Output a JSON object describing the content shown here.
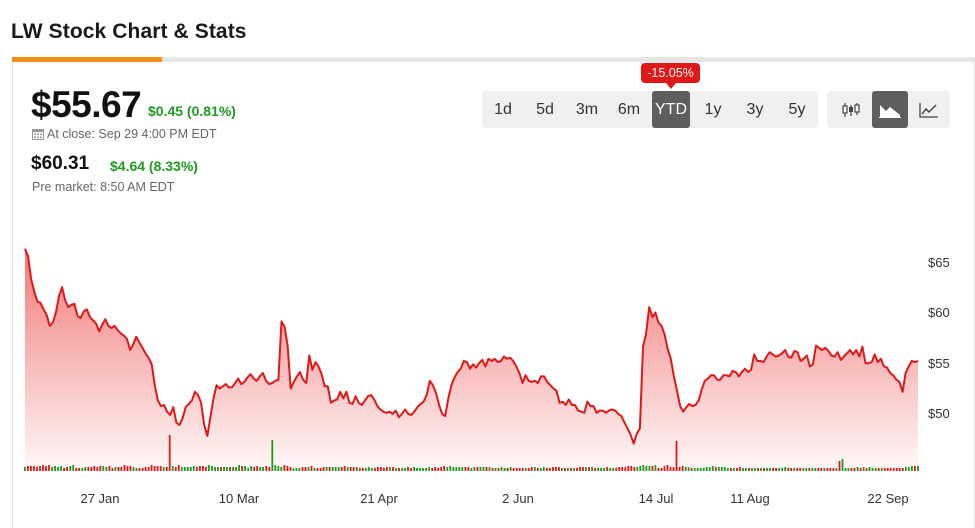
{
  "header": {
    "title": "LW Stock Chart & Stats"
  },
  "quote": {
    "price": "$55.67",
    "change": "$0.45 (0.81%)",
    "close_label": "At close: Sep 29 4:00 PM EDT",
    "pre_price": "$60.31",
    "pre_change": "$4.64 (8.33%)",
    "pre_label": "Pre market: 8:50 AM EDT"
  },
  "ranges": {
    "items": [
      "1d",
      "5d",
      "3m",
      "6m",
      "YTD",
      "1y",
      "3y",
      "5y"
    ],
    "selected": "YTD",
    "ytd_badge": "-15.05%"
  },
  "chart_types": {
    "items": [
      "candlestick-icon",
      "mountain-icon",
      "line-icon"
    ],
    "selected": "mountain-icon"
  },
  "colors": {
    "accent": "#f5901e",
    "line": "#e01818",
    "positive": "#1e9a1e",
    "negative": "#e01818"
  },
  "chart_data": {
    "type": "area",
    "y_ticks": [
      "$65",
      "$60",
      "$55",
      "$50"
    ],
    "y_tick_values": [
      65,
      60,
      55,
      50
    ],
    "ylim": [
      45.2,
      67
    ],
    "x_ticks": [
      "27 Jan",
      "10 Mar",
      "21 Apr",
      "2 Jun",
      "14 Jul",
      "11 Aug",
      "22 Sep"
    ],
    "grid": false,
    "price": [
      65.3,
      64.6,
      62.5,
      61.4,
      60.5,
      60.4,
      59.8,
      59.3,
      58.3,
      58.6,
      59.5,
      61.0,
      61.8,
      60.6,
      60.0,
      60.2,
      60.3,
      59.2,
      59.0,
      59.6,
      59.8,
      59.1,
      58.8,
      58.5,
      57.8,
      58.4,
      58.9,
      58.3,
      58.1,
      58.3,
      57.9,
      57.6,
      57.4,
      57.1,
      56.1,
      56.6,
      57.3,
      56.8,
      56.3,
      55.8,
      55.4,
      54.8,
      52.9,
      51.5,
      51.0,
      51.1,
      50.5,
      50.2,
      50.9,
      49.5,
      49.3,
      49.9,
      50.9,
      51.2,
      51.5,
      52.3,
      52.0,
      51.3,
      49.3,
      48.3,
      50.0,
      51.7,
      52.9,
      52.6,
      52.8,
      53.0,
      52.7,
      52.7,
      53.1,
      53.5,
      53.0,
      53.2,
      53.6,
      53.9,
      53.5,
      53.3,
      53.7,
      54.0,
      53.3,
      53.0,
      53.1,
      53.3,
      53.4,
      58.7,
      58.2,
      56.5,
      52.6,
      53.2,
      53.7,
      54.1,
      53.4,
      53.1,
      55.6,
      54.3,
      55.0,
      54.6,
      53.9,
      52.8,
      52.8,
      51.3,
      51.5,
      51.6,
      52.3,
      51.7,
      52.3,
      51.3,
      51.2,
      51.9,
      51.3,
      51.1,
      51.5,
      51.9,
      52.0,
      51.6,
      51.0,
      50.7,
      50.5,
      50.4,
      50.5,
      50.3,
      50.6,
      50.0,
      50.3,
      50.7,
      50.3,
      50.2,
      50.5,
      50.9,
      51.2,
      51.4,
      52.0,
      53.3,
      52.9,
      52.2,
      51.1,
      50.3,
      50.1,
      51.7,
      52.9,
      53.6,
      54.1,
      54.4,
      55.1,
      55.0,
      54.4,
      54.8,
      54.5,
      54.9,
      55.2,
      54.6,
      55.3,
      55.1,
      55.3,
      55.0,
      55.1,
      55.5,
      55.3,
      55.4,
      55.1,
      54.6,
      54.0,
      53.1,
      53.8,
      53.3,
      53.2,
      53.3,
      53.1,
      53.7,
      53.7,
      53.2,
      52.9,
      52.6,
      52.4,
      51.3,
      51.4,
      51.1,
      51.6,
      51.1,
      51.1,
      50.6,
      50.5,
      50.4,
      51.4,
      51.0,
      51.0,
      50.4,
      50.6,
      50.6,
      50.4,
      50.6,
      50.7,
      50.6,
      50.3,
      50.1,
      49.5,
      49.0,
      48.4,
      47.6,
      48.5,
      49.0,
      56.4,
      57.6,
      60.0,
      59.1,
      59.5,
      58.6,
      58.3,
      57.5,
      56.2,
      55.3,
      53.7,
      52.4,
      51.0,
      50.5,
      50.9,
      51.2,
      51.0,
      51.1,
      51.5,
      52.5,
      53.3,
      53.5,
      53.8,
      53.8,
      53.4,
      53.4,
      53.8,
      53.8,
      53.7,
      54.2,
      54.1,
      53.7,
      54.1,
      54.4,
      54.1,
      54.3,
      55.7,
      55.1,
      55.1,
      55.0,
      55.5,
      55.9,
      55.7,
      55.5,
      55.6,
      55.8,
      56.1,
      55.5,
      55.4,
      56.0,
      55.9,
      55.1,
      55.3,
      55.6,
      54.6,
      54.8,
      56.5,
      56.3,
      56.1,
      56.3,
      56.0,
      55.6,
      55.5,
      55.9,
      55.2,
      55.5,
      55.8,
      56.1,
      55.7,
      56.1,
      55.5,
      56.4,
      54.9,
      54.9,
      55.0,
      55.7,
      55.0,
      55.3,
      54.6,
      54.5,
      54.0,
      53.8,
      53.4,
      53.2,
      52.3,
      54.0,
      54.6,
      55.1,
      55.0,
      55.1
    ],
    "volume_colors_note": "green up, red down",
    "volume": [
      4,
      5,
      5,
      5,
      4,
      5,
      6,
      5,
      6,
      4,
      5,
      4,
      5,
      3,
      4,
      5,
      6,
      3,
      3,
      3,
      4,
      4,
      4,
      5,
      4,
      5,
      5,
      4,
      5,
      3,
      4,
      4,
      4,
      6,
      5,
      5,
      4,
      3,
      3,
      3,
      4,
      4,
      6,
      5,
      5,
      5,
      4,
      4,
      4,
      5,
      4,
      6,
      4,
      4,
      4,
      4,
      5,
      4,
      5,
      5,
      4,
      6,
      5,
      4,
      4,
      4,
      4,
      4,
      4,
      4,
      4,
      6,
      5,
      5,
      3,
      5,
      4,
      5,
      4,
      4,
      5,
      4,
      4,
      6,
      5,
      4,
      6,
      5,
      4,
      3,
      3,
      3,
      4,
      4,
      4,
      5,
      3,
      3,
      3,
      4,
      4,
      4,
      4,
      4,
      4,
      4,
      5,
      4,
      4,
      4,
      4,
      3,
      3,
      3,
      4,
      3,
      3,
      4,
      4,
      3,
      4,
      4,
      4,
      3,
      3,
      3,
      3,
      4,
      3,
      4,
      3,
      3,
      3,
      3,
      4,
      3,
      4,
      3,
      4,
      5,
      4,
      5,
      4,
      4,
      4,
      4,
      4,
      4,
      3,
      4,
      4,
      4,
      4,
      4,
      4,
      3,
      3,
      3,
      4,
      3,
      3,
      4,
      3,
      3,
      3,
      3,
      3,
      3,
      4,
      4,
      3,
      3,
      4,
      3,
      3,
      4,
      4,
      4,
      3,
      3,
      3,
      3,
      3,
      3,
      4,
      4,
      4,
      4,
      4,
      3,
      3,
      3,
      3,
      4,
      3,
      3,
      3,
      4,
      4,
      4,
      5,
      5,
      4,
      4,
      5,
      6,
      5,
      5,
      5,
      6,
      3,
      3,
      5,
      6,
      4,
      4,
      5,
      4,
      5,
      4,
      4,
      3,
      3,
      3,
      3,
      3,
      4,
      4,
      5,
      4,
      4,
      4,
      4,
      3,
      3,
      3,
      3,
      4,
      3,
      3,
      3,
      3,
      3,
      3,
      3,
      3,
      3,
      3,
      3,
      3,
      3,
      3,
      4,
      3,
      3,
      3,
      3,
      3,
      3,
      3,
      3,
      3,
      3,
      3,
      3,
      3,
      3,
      3,
      3,
      3,
      4,
      3,
      3,
      3,
      3,
      3,
      4,
      3,
      4,
      3,
      4,
      3,
      3,
      3,
      3,
      3,
      3,
      3,
      3,
      3,
      3,
      3,
      4,
      4,
      5,
      5,
      5
    ],
    "volume_spikes": [
      [
        48,
        36
      ],
      [
        82,
        31
      ],
      [
        216,
        30
      ],
      [
        270,
        10
      ],
      [
        271,
        12
      ]
    ]
  }
}
